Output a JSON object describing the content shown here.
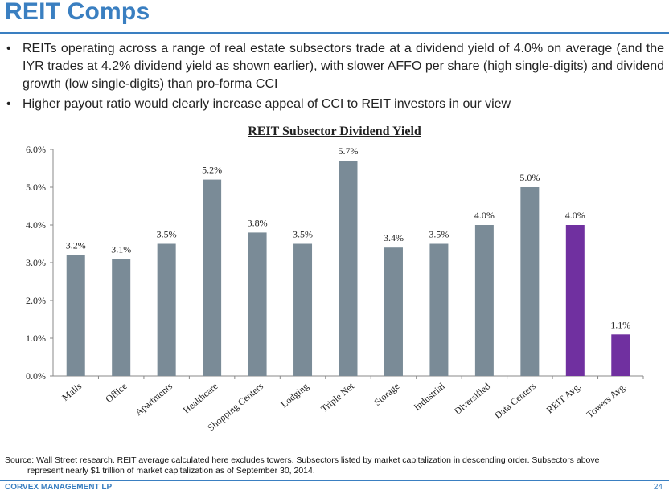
{
  "header": {
    "title": "REIT Comps"
  },
  "bullets": [
    "REITs operating across a range of real estate subsectors trade at a dividend yield of 4.0% on average (and the IYR trades at 4.2% dividend yield as shown earlier), with slower AFFO per share (high single-digits) and dividend growth (low single-digits) than pro-forma CCI",
    "Higher payout ratio would clearly increase appeal of CCI to REIT investors in our view"
  ],
  "colors": {
    "accent": "#3a7fc1",
    "bar": "#7a8b97",
    "highlight": "#7030a0"
  },
  "chart_data": {
    "type": "bar",
    "title": "REIT Subsector Dividend Yield",
    "xlabel": "",
    "ylabel": "",
    "categories": [
      "Malls",
      "Office",
      "Apartments",
      "Healthcare",
      "Shopping Centers",
      "Lodging",
      "Triple Net",
      "Storage",
      "Industrial",
      "Diversified",
      "Data Centers",
      "REIT Avg.",
      "Towers Avg."
    ],
    "values": [
      3.2,
      3.1,
      3.5,
      5.2,
      3.8,
      3.5,
      5.7,
      3.4,
      3.5,
      4.0,
      5.0,
      4.0,
      1.1
    ],
    "data_labels": [
      "3.2%",
      "3.1%",
      "3.5%",
      "5.2%",
      "3.8%",
      "3.5%",
      "5.7%",
      "3.4%",
      "3.5%",
      "4.0%",
      "5.0%",
      "4.0%",
      "1.1%"
    ],
    "highlighted": [
      "REIT Avg.",
      "Towers Avg."
    ],
    "yticks": [
      "0.0%",
      "1.0%",
      "2.0%",
      "3.0%",
      "4.0%",
      "5.0%",
      "6.0%"
    ],
    "ylim": [
      0,
      6
    ],
    "grid": false,
    "legend": "none"
  },
  "source": {
    "line1": "Source: Wall Street research.  REIT average calculated here excludes towers.  Subsectors listed by market capitalization in descending order.  Subsectors above",
    "line2": "represent nearly $1 trillion of market capitalization as of September 30, 2014."
  },
  "footer": {
    "company": "CORVEX MANAGEMENT LP",
    "page": "24"
  }
}
